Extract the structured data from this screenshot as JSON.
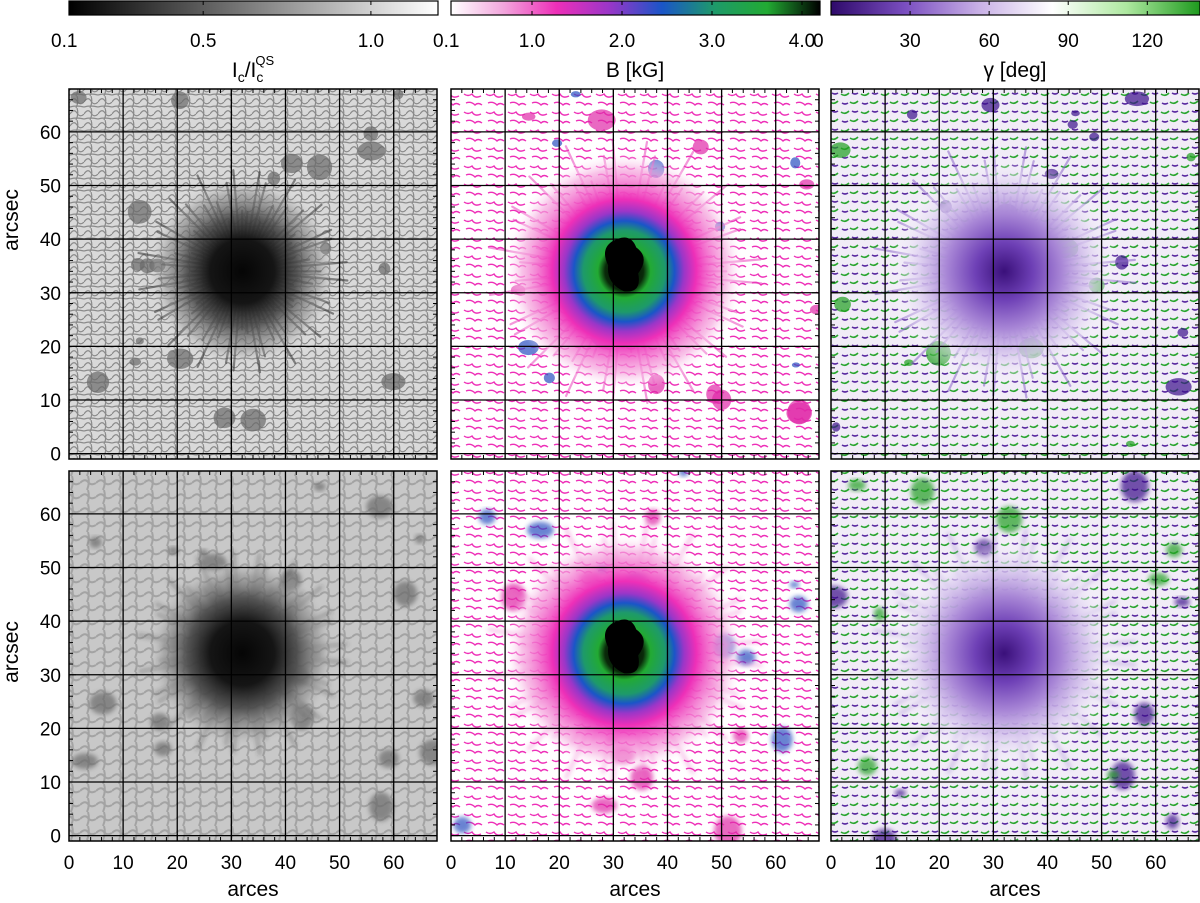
{
  "figure": {
    "colorbars": [
      {
        "id": "intensity",
        "ticks": [
          "0.1",
          "0.5",
          "1.0"
        ],
        "tick_values": [
          0.1,
          0.5,
          1.0
        ],
        "range": [
          0.1,
          1.2
        ],
        "colors": [
          "#000000",
          "#ffffff"
        ],
        "label_parts": [
          "I",
          "c",
          "/I",
          "c",
          "QS"
        ]
      },
      {
        "id": "field-strength",
        "ticks": [
          "0.1",
          "1.0",
          "2.0",
          "3.0",
          "4.0"
        ],
        "tick_values": [
          0.1,
          1.0,
          2.0,
          3.0,
          4.0
        ],
        "range": [
          0.1,
          4.2
        ],
        "colors": [
          "#ffffff",
          "#f2a5dc",
          "#ee2fb8",
          "#9a36c8",
          "#1a55c8",
          "#1e9a6a",
          "#22aa33",
          "#000000"
        ],
        "label": "B [kG]"
      },
      {
        "id": "inclination",
        "ticks": [
          "0",
          "30",
          "60",
          "90",
          "120"
        ],
        "tick_values": [
          0,
          30,
          60,
          90,
          120
        ],
        "range": [
          0,
          140
        ],
        "colors": [
          "#2e0a6a",
          "#7a4ec0",
          "#c8b0e6",
          "#ffffff",
          "#aee8a0",
          "#1e9a1e"
        ],
        "label": "γ [deg]"
      }
    ],
    "x_axis": {
      "label": "arces",
      "ticks": [
        "0",
        "10",
        "20",
        "30",
        "40",
        "50",
        "60"
      ],
      "range": [
        0,
        68
      ]
    },
    "y_axis": {
      "label": "arcsec",
      "ticks": [
        "0",
        "10",
        "20",
        "30",
        "40",
        "50",
        "60"
      ],
      "range": [
        -1,
        68
      ]
    },
    "grid": true,
    "grid_spacing": 10,
    "sunspot_center": [
      32,
      34
    ],
    "panels": [
      {
        "row": 1,
        "col": 1,
        "quantity": "intensity",
        "image": "continuum intensity map of a sunspot (sharp)"
      },
      {
        "row": 1,
        "col": 2,
        "quantity": "field-strength",
        "image": "magnetic field strength map of a sunspot (sharp)"
      },
      {
        "row": 1,
        "col": 3,
        "quantity": "inclination",
        "image": "magnetic field inclination map of a sunspot (sharp)"
      },
      {
        "row": 2,
        "col": 1,
        "quantity": "intensity",
        "image": "continuum intensity map of a sunspot (smoothed)"
      },
      {
        "row": 2,
        "col": 2,
        "quantity": "field-strength",
        "image": "magnetic field strength map of a sunspot (smoothed)"
      },
      {
        "row": 2,
        "col": 3,
        "quantity": "inclination",
        "image": "magnetic field inclination map of a sunspot (smoothed)"
      }
    ]
  }
}
